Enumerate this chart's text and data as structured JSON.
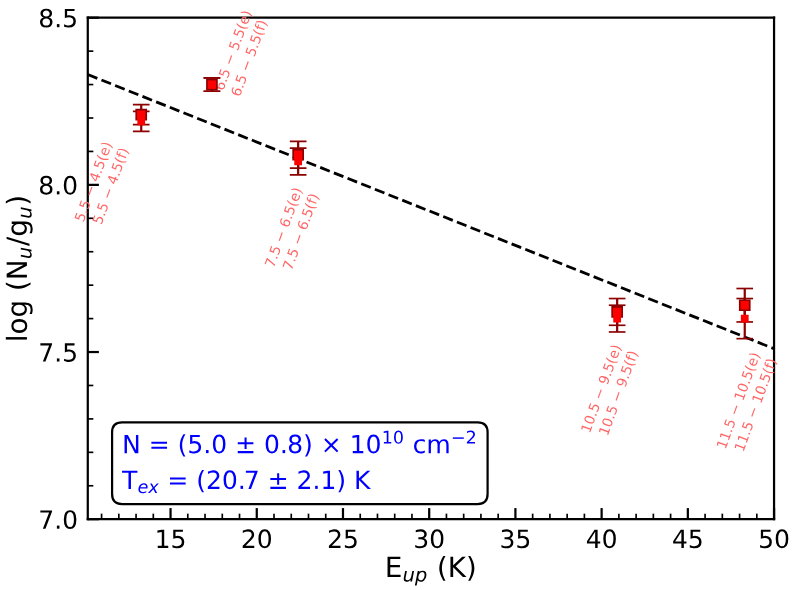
{
  "chart_data": {
    "type": "scatter",
    "xlabel": "E$_{up}$ (K)",
    "ylabel": "log (N$_{u}$/g$_{u}$)",
    "xlim": [
      10.2,
      50
    ],
    "xticks": [
      15,
      20,
      25,
      30,
      35,
      40,
      45,
      50
    ],
    "ylim": [
      7.0,
      8.5
    ],
    "yticks": [
      {
        "value": 7,
        "label": "7.0"
      },
      7.5,
      {
        "value": 8,
        "label": "8.0"
      },
      8.5
    ],
    "grid": false,
    "marker": "square",
    "series": [
      {
        "color": "#ff0000",
        "x": [
          13.3,
          17.4,
          22.4,
          40.9,
          48.3
        ],
        "values": [
          8.21,
          8.3,
          8.09,
          7.62,
          7.64
        ],
        "errors": [
          0.03,
          0.02,
          0.04,
          0.04,
          0.05
        ]
      },
      {
        "color": "#ff0000",
        "x": [
          13.3,
          17.4,
          22.4,
          40.9,
          48.3
        ],
        "values": [
          8.19,
          8.3,
          8.07,
          7.6,
          7.6
        ],
        "errors": [
          0.03,
          0.02,
          0.04,
          0.04,
          0.06
        ]
      },
      {
        "type": "line",
        "color": "#000000",
        "line_style": "dashed",
        "marker": "none",
        "x": [
          10.2,
          50
        ],
        "values": [
          8.33,
          7.51
        ]
      }
    ],
    "annotations": [
      {
        "text": "5.5 − 4.5(e)\n5.5 − 4.5(f)",
        "x": 13.3,
        "y": 8.2
      },
      {
        "text": "6.5 − 5.5(e)\n6.5 − 5.5(f)",
        "x": 17.4,
        "y": 8.3
      },
      {
        "text": "7.5 − 6.5(e)\n7.5 − 6.5(f)",
        "x": 22.4,
        "y": 8.08
      },
      {
        "text": "10.5 − 9.5(e)\n10.5 − 9.5(f)",
        "x": 40.9,
        "y": 7.61
      },
      {
        "text": "11.5 − 10.5(e)\n11.5 − 10.5(f)",
        "x": 48.3,
        "y": 7.62
      },
      "N = (5.0 ± 0.8) × 10$^{10}$ cm$^{−2}$\nT$_{ex}$ = (20.7 ± 2.1) K"
    ]
  }
}
